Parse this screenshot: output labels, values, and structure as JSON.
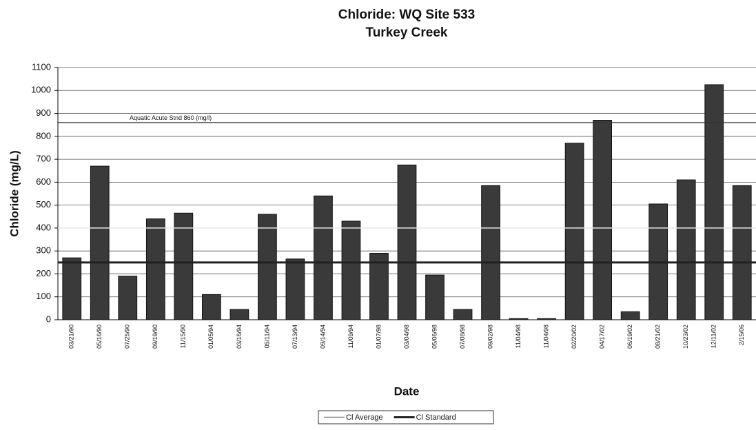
{
  "chart_data": {
    "type": "bar",
    "title": "Chloride: WQ Site 533",
    "subtitle": "Turkey Creek",
    "y_label": "Chloride (mg/L)",
    "x_label": "Date",
    "categories": [
      "03/21/90",
      "05/16/90",
      "07/25/90",
      "09/19/90",
      "11/15/90",
      "01/05/94",
      "03/16/94",
      "05/11/94",
      "07/13/94",
      "09/14/94",
      "11/09/94",
      "01/07/98",
      "03/04/98",
      "05/06/98",
      "07/08/98",
      "09/02/98",
      "11/04/98",
      "11/04/98",
      "02/20/02",
      "04/17/02",
      "06/19/02",
      "08/21/02",
      "10/23/02",
      "12/11/02",
      "2/15/06"
    ],
    "values": [
      270,
      670,
      190,
      440,
      465,
      110,
      45,
      460,
      265,
      540,
      430,
      290,
      675,
      195,
      45,
      585,
      5,
      5,
      770,
      870,
      35,
      505,
      610,
      1025,
      585
    ],
    "color": "#3a3a3a",
    "reference_lines": [
      {
        "name": "Cl Average",
        "value": 400,
        "color": "#e8e8e8",
        "width": 1.5
      },
      {
        "name": "Cl Standard",
        "value": 250,
        "color": "#222222",
        "width": 3
      }
    ],
    "annotation": {
      "text": "Aquatic Acute Stnd 860 (mg/l)",
      "value": 860
    },
    "ylim": [
      0,
      1100
    ],
    "yticks": [
      0,
      100,
      200,
      300,
      400,
      500,
      600,
      700,
      800,
      900,
      1000,
      1100
    ],
    "grid": true,
    "legend": "bottom"
  }
}
